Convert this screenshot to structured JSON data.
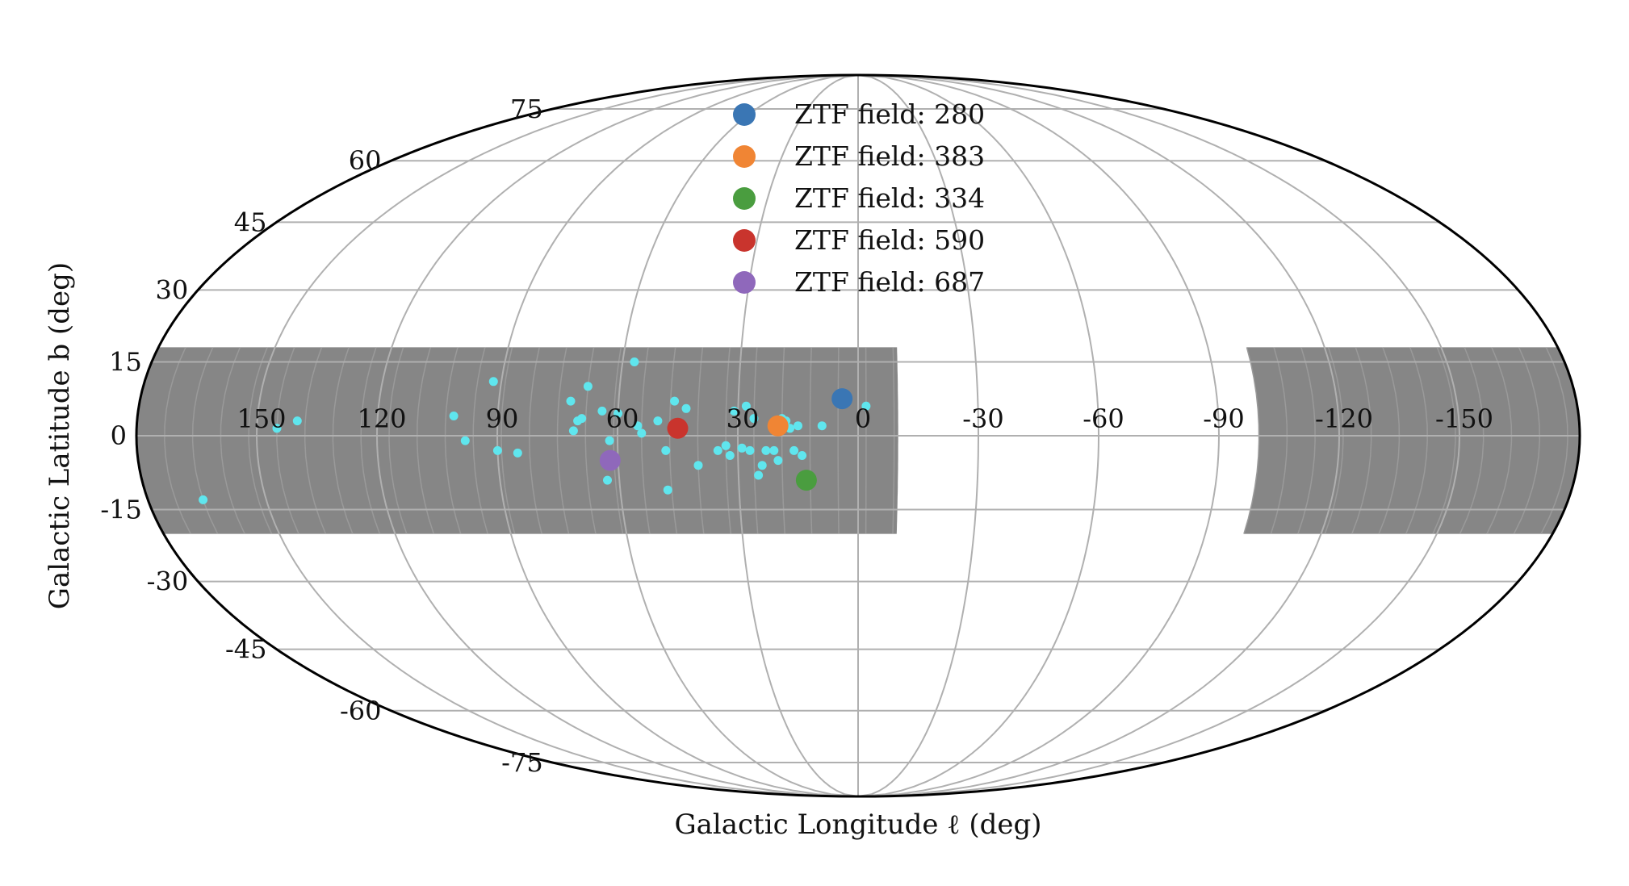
{
  "chart_data": {
    "type": "scatter",
    "projection": "mollweide",
    "xlabel": "Galactic Longitude ℓ (deg)",
    "ylabel": "Galactic Latitude b (deg)",
    "x_ticks": [
      150,
      120,
      90,
      60,
      30,
      0,
      -30,
      -60,
      -90,
      -120,
      -150
    ],
    "x_tick_labels": [
      "150",
      "120",
      "90",
      "60",
      "30",
      "0",
      "-30",
      "-60",
      "-90",
      "-120",
      "-150"
    ],
    "y_ticks": [
      75,
      60,
      45,
      30,
      15,
      0,
      -15,
      -30,
      -45,
      -60,
      -75
    ],
    "y_tick_labels": [
      "75",
      "60",
      "45",
      "30",
      "15",
      "0",
      "-15",
      "-30",
      "-45",
      "-60",
      "-75"
    ],
    "xlim": [
      180,
      -180
    ],
    "ylim": [
      -90,
      90
    ],
    "grid": true,
    "legend_position": "top-center",
    "colors": {
      "footprint": "#808080",
      "candidates": "#5fe6ee",
      "grid": "#b0b0b0",
      "outline": "#000000"
    },
    "footprint_regions": [
      {
        "lon_range": [
          180,
          -10
        ],
        "lat_range": [
          -20,
          18
        ]
      },
      {
        "lon_range": [
          -100,
          -180
        ],
        "lat_range": [
          -20,
          18
        ]
      }
    ],
    "candidates": [
      {
        "l": 145,
        "b": 1.5
      },
      {
        "l": 140,
        "b": 3
      },
      {
        "l": 166,
        "b": -13
      },
      {
        "l": 101,
        "b": 4
      },
      {
        "l": 98,
        "b": -1
      },
      {
        "l": 92,
        "b": 11
      },
      {
        "l": 90,
        "b": -3
      },
      {
        "l": 85,
        "b": -3.5
      },
      {
        "l": 72,
        "b": 7
      },
      {
        "l": 70,
        "b": 3
      },
      {
        "l": 71,
        "b": 1
      },
      {
        "l": 69,
        "b": 3.5
      },
      {
        "l": 68,
        "b": 10
      },
      {
        "l": 64,
        "b": 5
      },
      {
        "l": 62,
        "b": -1
      },
      {
        "l": 60,
        "b": 4.5
      },
      {
        "l": 63,
        "b": -9
      },
      {
        "l": 57,
        "b": 15
      },
      {
        "l": 55,
        "b": 2
      },
      {
        "l": 54,
        "b": 0.5
      },
      {
        "l": 50,
        "b": 3
      },
      {
        "l": 48,
        "b": -3
      },
      {
        "l": 48,
        "b": -11
      },
      {
        "l": 46,
        "b": 7
      },
      {
        "l": 43,
        "b": 5.5
      },
      {
        "l": 40,
        "b": -6
      },
      {
        "l": 35,
        "b": -3
      },
      {
        "l": 33,
        "b": -2
      },
      {
        "l": 32,
        "b": -4
      },
      {
        "l": 31,
        "b": 5
      },
      {
        "l": 28,
        "b": 6
      },
      {
        "l": 29,
        "b": -2.5
      },
      {
        "l": 27,
        "b": -3
      },
      {
        "l": 26,
        "b": 3.5
      },
      {
        "l": 25,
        "b": -8
      },
      {
        "l": 24,
        "b": -6
      },
      {
        "l": 23,
        "b": -3
      },
      {
        "l": 21,
        "b": -3
      },
      {
        "l": 20,
        "b": -5
      },
      {
        "l": 19,
        "b": 3.5
      },
      {
        "l": 18,
        "b": 3
      },
      {
        "l": 17,
        "b": 1.5
      },
      {
        "l": 16,
        "b": -3
      },
      {
        "l": 15,
        "b": 2
      },
      {
        "l": 14,
        "b": -4
      },
      {
        "l": 9,
        "b": 2
      },
      {
        "l": -2,
        "b": 6
      }
    ],
    "series": [
      {
        "name": "ZTF field: 280",
        "color": "#3a76b4",
        "l": 4,
        "b": 7.5
      },
      {
        "name": "ZTF field: 383",
        "color": "#f08534",
        "l": 20,
        "b": 2
      },
      {
        "name": "ZTF field: 334",
        "color": "#4a9d3f",
        "l": 13,
        "b": -9
      },
      {
        "name": "ZTF field: 590",
        "color": "#c9342d",
        "l": 45,
        "b": 1.5
      },
      {
        "name": "ZTF field: 687",
        "color": "#8f68bb",
        "l": 62,
        "b": -5
      }
    ]
  }
}
